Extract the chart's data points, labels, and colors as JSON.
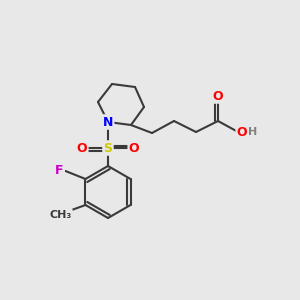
{
  "bg_color": "#e8e8e8",
  "bond_color": "#3a3a3a",
  "bond_width": 1.5,
  "atom_colors": {
    "N": "#0000ff",
    "O": "#ff0000",
    "S": "#cccc00",
    "F": "#cc00cc",
    "H": "#808080",
    "C_line": "#3a3a3a"
  },
  "font_size": 9,
  "font_size_small": 8
}
